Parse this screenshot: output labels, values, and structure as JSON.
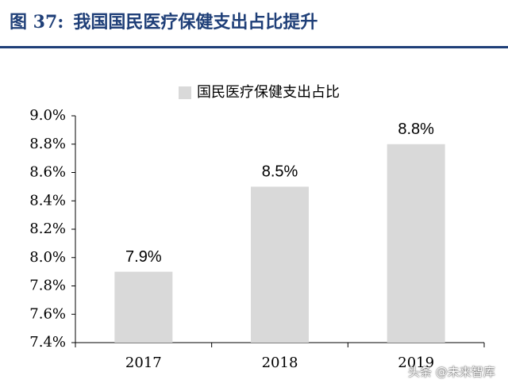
{
  "figure": {
    "label": "图 37:",
    "title": "我国国民医疗保健支出占比提升"
  },
  "watermark": "头条 @未来智库",
  "colors": {
    "title": "#1f3f78",
    "bar": "#d9d9d9",
    "axis": "#000000",
    "text": "#000000"
  },
  "chart_data": {
    "type": "bar",
    "categories": [
      "2017",
      "2018",
      "2019"
    ],
    "series": [
      {
        "name": "国民医疗保健支出占比",
        "values": [
          7.9,
          8.5,
          8.8
        ]
      }
    ],
    "data_labels": [
      "7.9%",
      "8.5%",
      "8.8%"
    ],
    "ylim": [
      7.4,
      9.0
    ],
    "yticks": [
      "7.4%",
      "7.6%",
      "7.8%",
      "8.0%",
      "8.2%",
      "8.4%",
      "8.6%",
      "8.8%",
      "9.0%"
    ],
    "ytick_values": [
      7.4,
      7.6,
      7.8,
      8.0,
      8.2,
      8.4,
      8.6,
      8.8,
      9.0
    ],
    "legend_position": "top-center",
    "grid": false
  }
}
